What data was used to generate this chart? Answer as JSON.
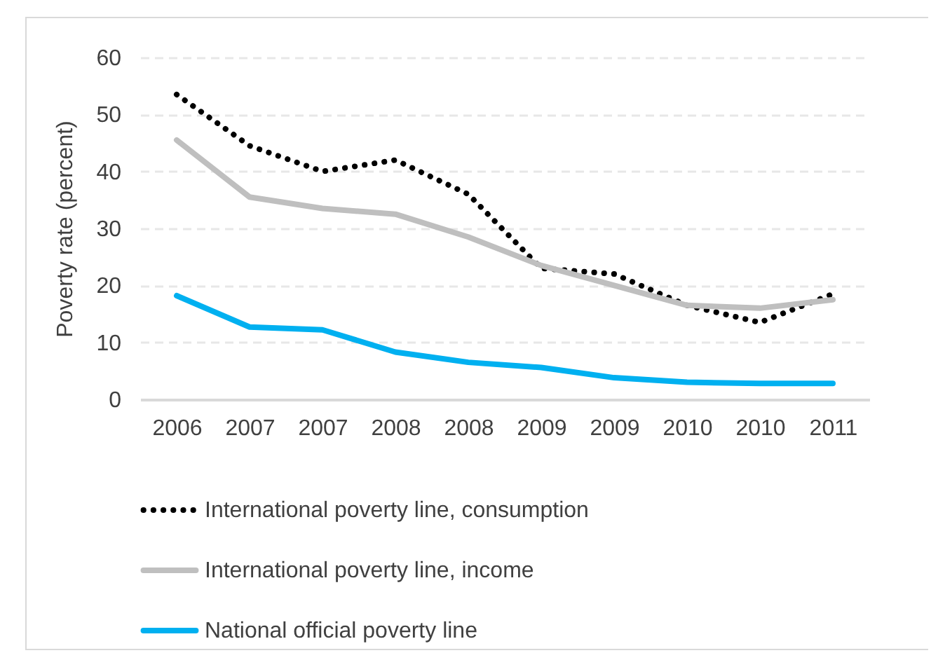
{
  "chart_data": {
    "type": "line",
    "ylabel": "Poverty rate (percent)",
    "categories": [
      "2006",
      "2007",
      "2007",
      "2008",
      "2008",
      "2009",
      "2009",
      "2010",
      "2010",
      "2011"
    ],
    "series": [
      {
        "name": "International poverty line, consumption",
        "color": "#000000",
        "line_style": "dotted",
        "values": [
          53.5,
          44.5,
          40,
          42,
          36,
          23,
          22,
          16.5,
          13.5,
          18.5
        ]
      },
      {
        "name": "International poverty line, income",
        "color": "#bfbfbf",
        "line_style": "solid",
        "values": [
          45.5,
          35.5,
          33.5,
          32.5,
          28.5,
          23.5,
          20,
          16.5,
          16,
          17.5
        ]
      },
      {
        "name": "National official poverty line",
        "color": "#00b0f0",
        "line_style": "solid",
        "values": [
          18.2,
          12.7,
          12.2,
          8.3,
          6.5,
          5.6,
          3.8,
          3,
          2.8,
          2.8
        ]
      }
    ],
    "ylim": [
      0,
      60
    ],
    "yticks": [
      0,
      10,
      20,
      30,
      40,
      50,
      60
    ],
    "grid": "y",
    "legend": "bottom",
    "marker": "none"
  }
}
